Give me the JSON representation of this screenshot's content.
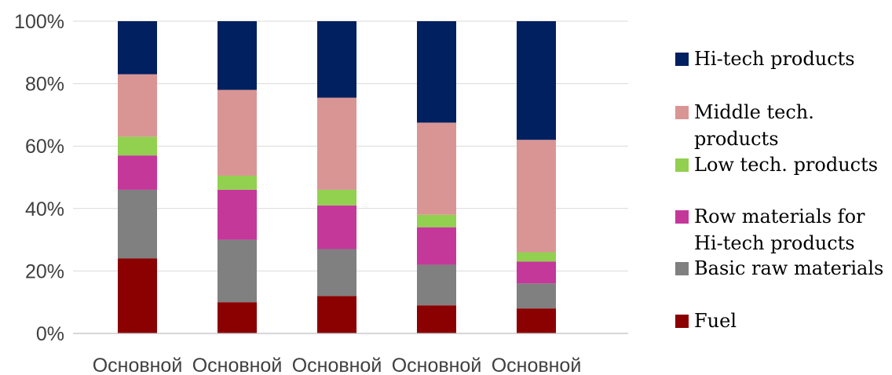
{
  "chart_data": {
    "type": "bar",
    "stacked": "100%",
    "categories": [
      "Основной",
      "Основной",
      "Основной",
      "Основной",
      "Основной"
    ],
    "series": [
      {
        "name": "Fuel",
        "color": "#8b0000",
        "values": [
          24,
          10,
          12,
          9,
          8
        ]
      },
      {
        "name": "Basic raw materials",
        "color": "#808080",
        "values": [
          22,
          20,
          15,
          13,
          8
        ]
      },
      {
        "name": "Row materials for Hi-tech products",
        "color": "#c4389a",
        "values": [
          11,
          16,
          14,
          12,
          7
        ]
      },
      {
        "name": "Low tech. products",
        "color": "#92d050",
        "values": [
          6,
          4.5,
          5,
          4,
          3
        ]
      },
      {
        "name": "Middle tech. products",
        "color": "#d99594",
        "values": [
          20,
          27.5,
          29.5,
          29.5,
          36
        ]
      },
      {
        "name": "Hi-tech products",
        "color": "#002060",
        "values": [
          17,
          22,
          24.5,
          32.5,
          38
        ]
      }
    ],
    "y_ticks": [
      "0%",
      "20%",
      "40%",
      "60%",
      "80%",
      "100%"
    ],
    "ylim": [
      0,
      100
    ],
    "grid": true,
    "legend_position": "right",
    "title": "",
    "xlabel": "",
    "ylabel": ""
  }
}
